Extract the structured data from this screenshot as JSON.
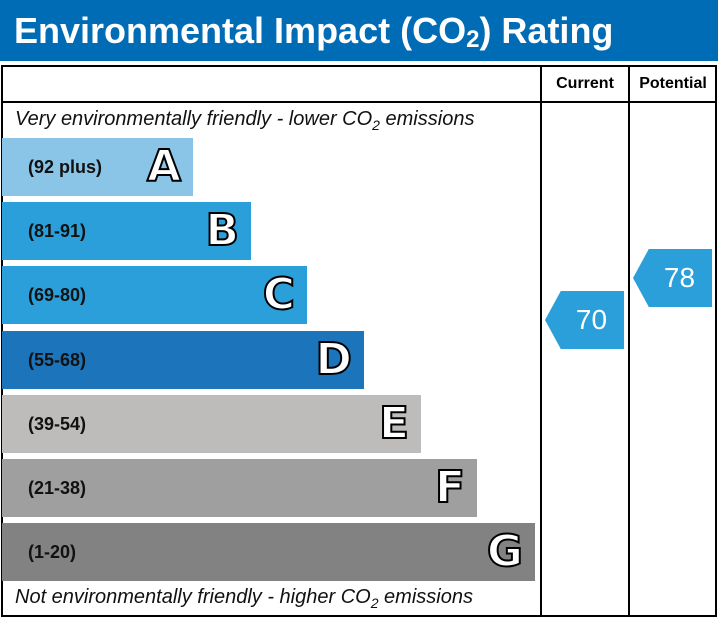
{
  "title": "Environmental Impact (CO",
  "title_sub": "2",
  "title_end": ") Rating",
  "chart_data": {
    "type": "bar",
    "columns": [
      "Current",
      "Potential"
    ],
    "top_note": {
      "pre": "Very environmentally friendly - lower CO",
      "sub": "2",
      "post": " emissions"
    },
    "bottom_note": {
      "pre": "Not environmentally friendly - higher CO",
      "sub": "2",
      "post": " emissions"
    },
    "bands": [
      {
        "letter": "A",
        "range": "(92 plus)",
        "min": 92,
        "max": 100,
        "color": "#8ac5e8"
      },
      {
        "letter": "B",
        "range": "(81-91)",
        "min": 81,
        "max": 91,
        "color": "#2a9fd9"
      },
      {
        "letter": "C",
        "range": "(69-80)",
        "min": 69,
        "max": 80,
        "color": "#2a9fd9"
      },
      {
        "letter": "D",
        "range": "(55-68)",
        "min": 55,
        "max": 68,
        "color": "#1c74ba"
      },
      {
        "letter": "E",
        "range": "(39-54)",
        "min": 39,
        "max": 54,
        "color": "#bdbcbb"
      },
      {
        "letter": "F",
        "range": "(21-38)",
        "min": 21,
        "max": 38,
        "color": "#a09fa0"
      },
      {
        "letter": "G",
        "range": "(1-20)",
        "min": 1,
        "max": 20,
        "color": "#828282"
      }
    ],
    "current": 70,
    "potential": 78,
    "arrow_color": "#2a9fd9"
  }
}
